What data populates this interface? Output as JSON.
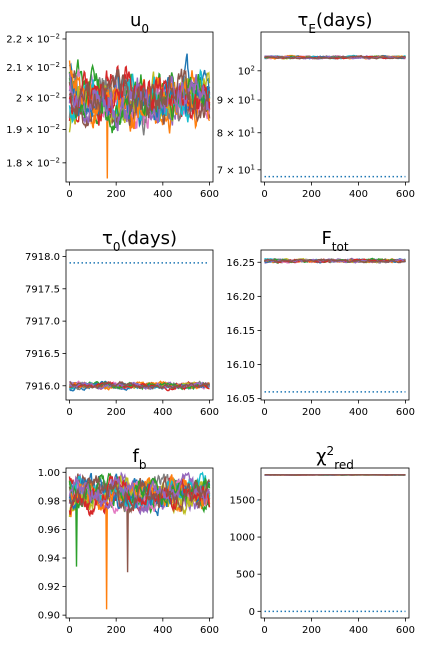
{
  "chart_data": [
    {
      "type": "line",
      "title_parts": [
        {
          "t": "u"
        },
        {
          "t": "0",
          "sub": true
        }
      ],
      "xlim": [
        -15,
        615
      ],
      "ylim": [
        0.01745,
        0.02225
      ],
      "yscale": "log",
      "xticks": [
        0,
        200,
        400,
        600
      ],
      "xtick_labels": [
        "0",
        "200",
        "400",
        "600"
      ],
      "yticks": [
        {
          "value": 0.022,
          "parts": [
            {
              "t": "2.2 × 10"
            },
            {
              "t": "−2",
              "sup": true
            }
          ]
        },
        {
          "value": 0.021,
          "parts": [
            {
              "t": "2.1 × 10"
            },
            {
              "t": "−2",
              "sup": true
            }
          ]
        },
        {
          "value": 0.02,
          "parts": [
            {
              "t": "2 × 10"
            },
            {
              "t": "−2",
              "sup": true
            }
          ]
        },
        {
          "value": 0.019,
          "parts": [
            {
              "t": "1.9 × 10"
            },
            {
              "t": "−2",
              "sup": true
            }
          ]
        },
        {
          "value": 0.018,
          "parts": [
            {
              "t": "1.8 × 10"
            },
            {
              "t": "−2",
              "sup": true
            }
          ]
        }
      ],
      "walkers": 16,
      "steps": 600,
      "walker_band": {
        "center": 0.02,
        "spread": 0.0022
      },
      "outliers": [
        {
          "series": 1,
          "step": 162,
          "value": 0.01755
        }
      ],
      "reference_line": null
    },
    {
      "type": "line",
      "title_parts": [
        {
          "t": "τ"
        },
        {
          "t": "E",
          "sub": true
        },
        {
          "t": "(days)"
        }
      ],
      "xlim": [
        -15,
        615
      ],
      "ylim": [
        67,
        115
      ],
      "yscale": "log",
      "xticks": [
        0,
        200,
        400,
        600
      ],
      "xtick_labels": [
        "0",
        "200",
        "400",
        "600"
      ],
      "yticks": [
        {
          "value": 100,
          "parts": [
            {
              "t": "10"
            },
            {
              "t": "2",
              "sup": true
            }
          ]
        },
        {
          "value": 90,
          "parts": [
            {
              "t": "9 × 10"
            },
            {
              "t": "1",
              "sup": true
            }
          ]
        },
        {
          "value": 80,
          "parts": [
            {
              "t": "8 × 10"
            },
            {
              "t": "1",
              "sup": true
            }
          ]
        },
        {
          "value": 70,
          "parts": [
            {
              "t": "7 × 10"
            },
            {
              "t": "1",
              "sup": true
            }
          ]
        }
      ],
      "walkers": 16,
      "steps": 600,
      "walker_band": {
        "center": 105.0,
        "spread": 1.2
      },
      "outliers": [],
      "reference_line": {
        "value": 68.3,
        "style": "dotted",
        "color": "#1f77b4"
      }
    },
    {
      "type": "line",
      "title_parts": [
        {
          "t": "τ"
        },
        {
          "t": "0",
          "sub": true
        },
        {
          "t": "(days)"
        }
      ],
      "xlim": [
        -15,
        615
      ],
      "ylim": [
        7915.78,
        7918.1
      ],
      "yscale": "linear",
      "xticks": [
        0,
        200,
        400,
        600
      ],
      "xtick_labels": [
        "0",
        "200",
        "400",
        "600"
      ],
      "yticks": [
        {
          "value": 7918.0,
          "parts": [
            {
              "t": "7918.0"
            }
          ]
        },
        {
          "value": 7917.5,
          "parts": [
            {
              "t": "7917.5"
            }
          ]
        },
        {
          "value": 7917.0,
          "parts": [
            {
              "t": "7917.0"
            }
          ]
        },
        {
          "value": 7916.5,
          "parts": [
            {
              "t": "7916.5"
            }
          ]
        },
        {
          "value": 7916.0,
          "parts": [
            {
              "t": "7916.0"
            }
          ]
        }
      ],
      "walkers": 16,
      "steps": 600,
      "walker_band": {
        "center": 7916.0,
        "spread": 0.12
      },
      "outliers": [],
      "reference_line": {
        "value": 7917.9,
        "style": "dotted",
        "color": "#1f77b4"
      }
    },
    {
      "type": "line",
      "title_parts": [
        {
          "t": "F"
        },
        {
          "t": "tot",
          "sub": true
        }
      ],
      "xlim": [
        -15,
        615
      ],
      "ylim": [
        16.048,
        16.268
      ],
      "yscale": "linear",
      "xticks": [
        0,
        200,
        400,
        600
      ],
      "xtick_labels": [
        "0",
        "200",
        "400",
        "600"
      ],
      "yticks": [
        {
          "value": 16.25,
          "parts": [
            {
              "t": "16.25"
            }
          ]
        },
        {
          "value": 16.2,
          "parts": [
            {
              "t": "16.20"
            }
          ]
        },
        {
          "value": 16.15,
          "parts": [
            {
              "t": "16.15"
            }
          ]
        },
        {
          "value": 16.1,
          "parts": [
            {
              "t": "16.10"
            }
          ]
        },
        {
          "value": 16.05,
          "parts": [
            {
              "t": "16.05"
            }
          ]
        }
      ],
      "walkers": 16,
      "steps": 600,
      "walker_band": {
        "center": 16.252,
        "spread": 0.006
      },
      "outliers": [],
      "reference_line": {
        "value": 16.06,
        "style": "dotted",
        "color": "#1f77b4"
      }
    },
    {
      "type": "line",
      "title_parts": [
        {
          "t": "f"
        },
        {
          "t": "b",
          "sub": true
        }
      ],
      "xlim": [
        -15,
        615
      ],
      "ylim": [
        0.898,
        1.003
      ],
      "yscale": "linear",
      "xticks": [
        0,
        200,
        400,
        600
      ],
      "xtick_labels": [
        "0",
        "200",
        "400",
        "600"
      ],
      "yticks": [
        {
          "value": 1.0,
          "parts": [
            {
              "t": "1.00"
            }
          ]
        },
        {
          "value": 0.98,
          "parts": [
            {
              "t": "0.98"
            }
          ]
        },
        {
          "value": 0.96,
          "parts": [
            {
              "t": "0.96"
            }
          ]
        },
        {
          "value": 0.94,
          "parts": [
            {
              "t": "0.94"
            }
          ]
        },
        {
          "value": 0.92,
          "parts": [
            {
              "t": "0.92"
            }
          ]
        },
        {
          "value": 0.9,
          "parts": [
            {
              "t": "0.90"
            }
          ]
        }
      ],
      "walkers": 16,
      "steps": 600,
      "walker_band": {
        "center": 0.985,
        "spread": 0.03
      },
      "upper_bound": 1.0,
      "outliers": [
        {
          "series": 1,
          "step": 160,
          "value": 0.904
        },
        {
          "series": 5,
          "step": 248,
          "value": 0.93
        },
        {
          "series": 2,
          "step": 30,
          "value": 0.934
        }
      ],
      "reference_line": null
    },
    {
      "type": "line",
      "title_parts": [
        {
          "t": "χ"
        },
        {
          "t": "2",
          "sup": true
        },
        {
          "t": "red",
          "sub": true
        }
      ],
      "xlim": [
        -15,
        615
      ],
      "ylim": [
        -90,
        1930
      ],
      "yscale": "linear",
      "xticks": [
        0,
        200,
        400,
        600
      ],
      "xtick_labels": [
        "0",
        "200",
        "400",
        "600"
      ],
      "yticks": [
        {
          "value": 1500,
          "parts": [
            {
              "t": "1500"
            }
          ]
        },
        {
          "value": 1000,
          "parts": [
            {
              "t": "1000"
            }
          ]
        },
        {
          "value": 500,
          "parts": [
            {
              "t": "500"
            }
          ]
        },
        {
          "value": 0,
          "parts": [
            {
              "t": "0"
            }
          ]
        }
      ],
      "walkers": 16,
      "steps": 600,
      "walker_band": {
        "center": 1838,
        "spread": 4
      },
      "outliers": [],
      "reference_line": {
        "value": 0,
        "style": "dotted",
        "color": "#1f77b4"
      }
    }
  ],
  "series_colors": [
    "#1f77b4",
    "#ff7f0e",
    "#2ca02c",
    "#d62728",
    "#9467bd",
    "#8c564b",
    "#e377c2",
    "#7f7f7f",
    "#bcbd22",
    "#17becf"
  ]
}
